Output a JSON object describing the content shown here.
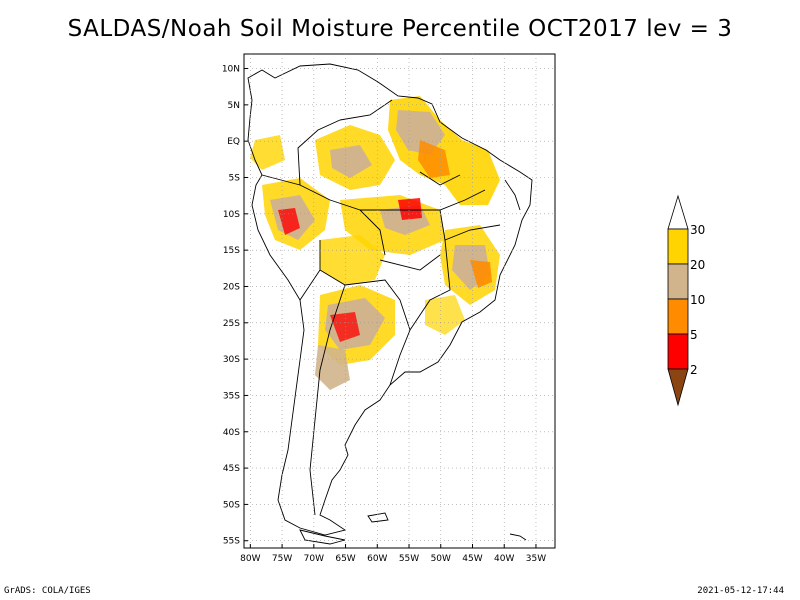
{
  "title": "SALDAS/Noah Soil Moisture Percentile OCT2017 lev = 3",
  "footer": {
    "left": "GrADS: COLA/IGES",
    "right": "2021-05-12-17:44"
  },
  "map": {
    "lon_labels": [
      "80W",
      "75W",
      "70W",
      "65W",
      "60W",
      "55W",
      "50W",
      "45W",
      "40W",
      "35W"
    ],
    "lon_values": [
      -80,
      -75,
      -70,
      -65,
      -60,
      -55,
      -50,
      -45,
      -40,
      -35
    ],
    "lat_labels": [
      "10N",
      "5N",
      "EQ",
      "5S",
      "10S",
      "15S",
      "20S",
      "25S",
      "30S",
      "35S",
      "40S",
      "45S",
      "50S",
      "55S"
    ],
    "lat_values": [
      10,
      5,
      0,
      -5,
      -10,
      -15,
      -20,
      -25,
      -30,
      -35,
      -40,
      -45,
      -50,
      -55
    ],
    "lon_range": [
      -81,
      -32
    ],
    "lat_range": [
      12,
      -56
    ]
  },
  "colorbar": {
    "labels": [
      "30",
      "20",
      "10",
      "5",
      "2"
    ],
    "colors": {
      "above30": "#ffffff",
      "20-30": "#ffd400",
      "10-20": "#d2b48c",
      "5-10": "#ff8c00",
      "2-5": "#ff0000",
      "below2": "#8b4513"
    }
  }
}
